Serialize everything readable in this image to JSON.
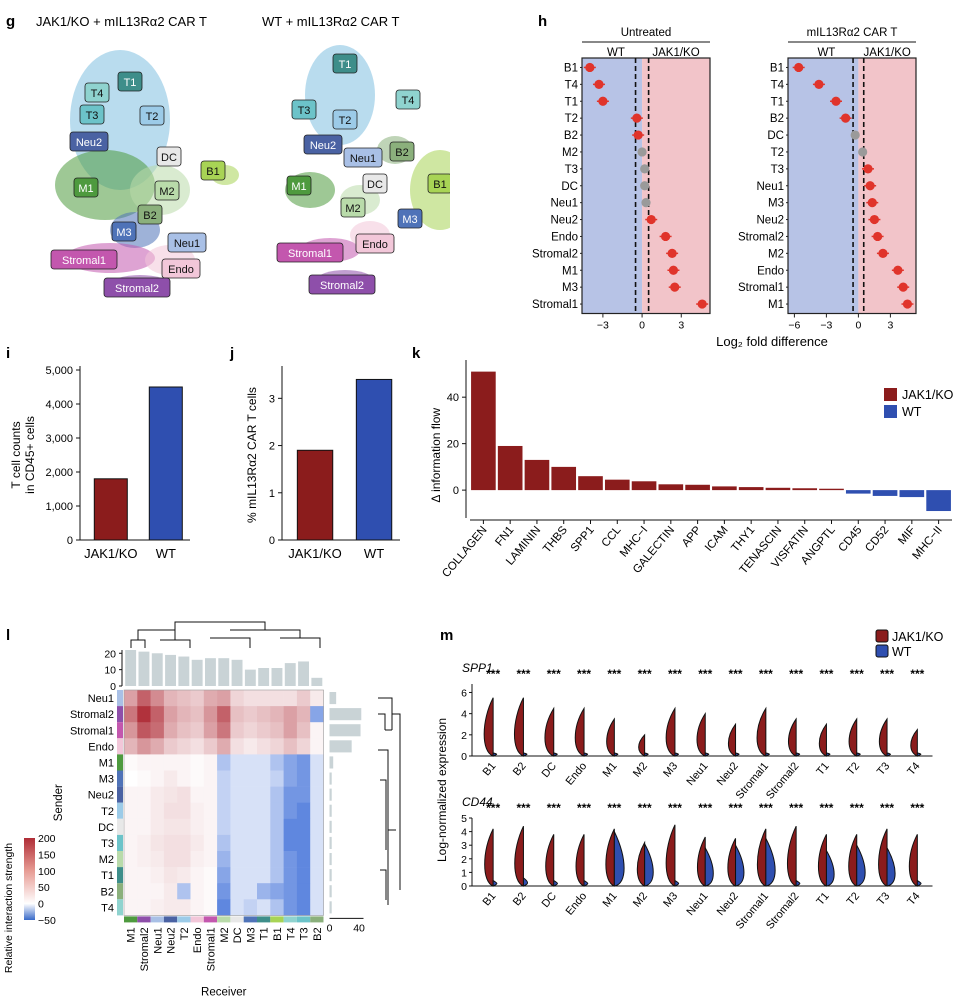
{
  "colors": {
    "jak1": "#8B1C1C",
    "wt": "#2F4FB0",
    "wtBand": "#B7C3E6",
    "koBand": "#F2C4C9",
    "dot": "#E0342B",
    "grey": "#9A9A9A"
  },
  "panel_g": {
    "letter": "g",
    "left_title": "JAK1/KO + mIL13Rα2 CAR T",
    "right_title": "WT + mIL13Rα2 CAR T",
    "left_labels": [
      "T1",
      "T4",
      "T3",
      "T2",
      "Neu2",
      "DC",
      "B1",
      "M1",
      "M2",
      "B2",
      "M3",
      "Neu1",
      "Stromal1",
      "Endo",
      "Stromal2"
    ],
    "right_labels": [
      "T1",
      "T4",
      "T3",
      "T2",
      "Neu2",
      "Neu1",
      "B2",
      "DC",
      "B1",
      "M1",
      "M2",
      "M3",
      "Endo",
      "Stromal1",
      "Stromal2"
    ]
  },
  "chart_data": [
    {
      "type": "scatter",
      "id": "h-untreated",
      "letter": "h",
      "title": "Untreated",
      "group_left": "WT",
      "group_right": "JAK1/KO",
      "categories": [
        "B1",
        "T4",
        "T1",
        "T2",
        "B2",
        "M2",
        "T3",
        "DC",
        "Neu1",
        "Neu2",
        "Endo",
        "Stromal2",
        "M1",
        "M3",
        "Stromal1"
      ],
      "values": [
        -4.0,
        -3.3,
        -3.0,
        -0.4,
        -0.3,
        0.0,
        0.2,
        0.2,
        0.3,
        0.7,
        1.8,
        2.3,
        2.4,
        2.5,
        4.6
      ],
      "significant": [
        true,
        true,
        true,
        true,
        true,
        false,
        false,
        false,
        false,
        true,
        true,
        true,
        true,
        true,
        true
      ],
      "xticks": [
        -3,
        0,
        3
      ],
      "xlim": [
        -4.6,
        5.2
      ]
    },
    {
      "type": "scatter",
      "id": "h-car",
      "title": "mIL13Rα2  CAR T",
      "group_left": "WT",
      "group_right": "JAK1/KO",
      "categories": [
        "B1",
        "T4",
        "T1",
        "B2",
        "DC",
        "T2",
        "T3",
        "Neu1",
        "M3",
        "Neu2",
        "Stromal2",
        "M2",
        "Endo",
        "Stromal1",
        "M1"
      ],
      "values": [
        -5.6,
        -3.7,
        -2.1,
        -1.2,
        -0.3,
        0.4,
        0.9,
        1.1,
        1.3,
        1.5,
        1.8,
        2.3,
        3.7,
        4.2,
        4.6
      ],
      "significant": [
        true,
        true,
        true,
        true,
        false,
        false,
        true,
        true,
        true,
        true,
        true,
        true,
        true,
        true,
        true
      ],
      "xticks": [
        -6,
        -3,
        0,
        3
      ],
      "xlim": [
        -6.6,
        5.4
      ],
      "xlabel": "Log₂ fold difference"
    },
    {
      "type": "bar",
      "id": "i",
      "letter": "i",
      "categories": [
        "JAK1/KO",
        "WT"
      ],
      "values": [
        1800,
        4500
      ],
      "ylabel_lines": [
        "T cell counts",
        "in CD45+ cells"
      ],
      "yticks": [
        "0",
        "1,000",
        "2,000",
        "3,000",
        "4,000",
        "5,000"
      ],
      "ylim": [
        0,
        5000
      ]
    },
    {
      "type": "bar",
      "id": "j",
      "letter": "j",
      "categories": [
        "JAK1/KO",
        "WT"
      ],
      "values": [
        1.9,
        3.4
      ],
      "ylabel": "% mIL13Rα2  CAR T cells",
      "yticks": [
        "0",
        "1",
        "2",
        "3"
      ],
      "ylim": [
        0,
        3.6
      ]
    },
    {
      "type": "bar",
      "id": "k",
      "letter": "k",
      "categories": [
        "COLLAGEN",
        "FN1",
        "LAMININ",
        "THBS",
        "SPP1",
        "CCL",
        "MHC−I",
        "GALECTIN",
        "APP",
        "ICAM",
        "THY1",
        "TENASCIN",
        "VISFATIN",
        "ANGPTL",
        "CD45",
        "CD52",
        "MIF",
        "MHC−II"
      ],
      "values": [
        51,
        19,
        13,
        10,
        6,
        4.5,
        3.8,
        2.5,
        2.3,
        1.6,
        1.3,
        1.0,
        0.8,
        0.6,
        -1.5,
        -2.5,
        -3,
        -9
      ],
      "ylabel": "Δ information flow",
      "yticks": [
        "0",
        "20",
        "40"
      ],
      "ylim": [
        -12,
        56
      ],
      "legend": [
        "JAK1/KO",
        "WT"
      ]
    },
    {
      "type": "heatmap",
      "id": "l",
      "letter": "l",
      "rows": [
        "Neu1",
        "Stromal2",
        "Stromal1",
        "Endo",
        "M1",
        "M3",
        "Neu2",
        "T2",
        "DC",
        "T3",
        "M2",
        "T1",
        "B2",
        "T4"
      ],
      "cols": [
        "M1",
        "Stromal2",
        "Neu1",
        "Neu2",
        "T2",
        "Endo",
        "Stromal1",
        "M2",
        "DC",
        "M3",
        "T1",
        "B1",
        "T4",
        "T3",
        "B2"
      ],
      "matrix": [
        [
          90,
          150,
          110,
          70,
          60,
          50,
          80,
          90,
          40,
          30,
          30,
          30,
          30,
          50,
          20
        ],
        [
          130,
          195,
          150,
          90,
          70,
          60,
          100,
          150,
          60,
          50,
          60,
          70,
          90,
          70,
          -30
        ],
        [
          100,
          160,
          140,
          80,
          60,
          50,
          90,
          130,
          50,
          40,
          50,
          60,
          90,
          60,
          10
        ],
        [
          70,
          100,
          80,
          50,
          40,
          30,
          50,
          80,
          30,
          20,
          30,
          40,
          60,
          40,
          10
        ],
        [
          5,
          10,
          10,
          10,
          10,
          5,
          10,
          -20,
          -10,
          -10,
          -10,
          -20,
          -30,
          -35,
          -10
        ],
        [
          0,
          5,
          10,
          20,
          10,
          5,
          10,
          -15,
          -10,
          -10,
          -10,
          -15,
          -30,
          -35,
          -10
        ],
        [
          10,
          10,
          20,
          25,
          30,
          10,
          10,
          -15,
          -10,
          -10,
          -10,
          -20,
          -35,
          -35,
          -10
        ],
        [
          10,
          10,
          20,
          30,
          30,
          15,
          10,
          -15,
          -10,
          -10,
          -10,
          -20,
          -35,
          -40,
          -10
        ],
        [
          10,
          10,
          20,
          25,
          25,
          15,
          10,
          -15,
          -10,
          -10,
          -10,
          -20,
          -40,
          -40,
          -10
        ],
        [
          10,
          15,
          25,
          30,
          30,
          20,
          10,
          -20,
          -10,
          -10,
          -10,
          -20,
          -40,
          -40,
          -10
        ],
        [
          10,
          15,
          20,
          30,
          30,
          15,
          10,
          -25,
          -10,
          -10,
          -10,
          -20,
          -35,
          -40,
          -10
        ],
        [
          10,
          10,
          15,
          25,
          20,
          10,
          5,
          -30,
          -10,
          -10,
          -10,
          -20,
          -35,
          -40,
          -10
        ],
        [
          10,
          10,
          10,
          20,
          -20,
          10,
          5,
          -35,
          -10,
          -10,
          -25,
          -30,
          -35,
          -40,
          -10
        ],
        [
          10,
          10,
          15,
          20,
          20,
          10,
          5,
          -40,
          -10,
          -15,
          -10,
          -20,
          -35,
          -40,
          -10
        ]
      ],
      "col_totals": [
        22,
        21,
        20,
        19,
        18,
        16,
        17,
        17,
        16,
        10,
        11,
        11,
        14,
        15,
        5
      ],
      "row_totals": [
        9,
        43,
        42,
        30,
        5,
        3,
        3,
        3,
        3,
        3,
        3,
        3,
        3,
        3
      ],
      "top_yticks": [
        "0",
        "10",
        "20"
      ],
      "right_xticks": [
        "0",
        "40"
      ],
      "xlabel": "Receiver",
      "ylabel": "Sender",
      "colorbar_label": "Relative interaction strength",
      "colorbar_ticks": [
        "200",
        "150",
        "100",
        "50",
        "0",
        "−50"
      ],
      "colorbar_range": [
        -50,
        200
      ]
    },
    {
      "type": "violin",
      "id": "m",
      "letter": "m",
      "legend": [
        "JAK1/KO",
        "WT"
      ],
      "ylabel": "Log-normalized expression",
      "significance": "***",
      "genes": [
        {
          "name": "SPP1",
          "yticks": [
            "0",
            "2",
            "4",
            "6"
          ],
          "ymax": 6.8,
          "categories": [
            "B1",
            "B2",
            "DC",
            "Endo",
            "M1",
            "M2",
            "M3",
            "Neu1",
            "Neu2",
            "Stromal1",
            "Stromal2",
            "T1",
            "T2",
            "T3",
            "T4"
          ],
          "jak1_height": [
            5.5,
            5.5,
            4.5,
            4.5,
            3.5,
            2,
            4.5,
            4,
            3,
            4.5,
            3.5,
            3,
            3.5,
            3.5,
            2.5
          ],
          "wt_height": [
            0.3,
            0.3,
            0.3,
            0.3,
            0.3,
            0.3,
            0.3,
            0.3,
            0.3,
            0.3,
            0.3,
            0.3,
            0.3,
            0.3,
            0.3
          ]
        },
        {
          "name": "CD44",
          "yticks": [
            "0",
            "1",
            "2",
            "3",
            "4",
            "5"
          ],
          "ymax": 5,
          "categories": [
            "B1",
            "B2",
            "DC",
            "Endo",
            "M1",
            "M2",
            "M3",
            "Neu1",
            "Neu2",
            "Stromal1",
            "Stromal2",
            "T1",
            "T2",
            "T3",
            "T4"
          ],
          "jak1_height": [
            4.2,
            4.4,
            3.8,
            3.8,
            4.2,
            3.2,
            4.5,
            3.6,
            3.5,
            4.2,
            4.4,
            3.8,
            3.8,
            4.2,
            3.8
          ],
          "wt_height": [
            0.4,
            0.6,
            0.4,
            0.4,
            4.0,
            3.1,
            0.4,
            2.8,
            3.0,
            3.5,
            0.4,
            2.6,
            3.0,
            2.8,
            0.4
          ]
        }
      ]
    }
  ]
}
